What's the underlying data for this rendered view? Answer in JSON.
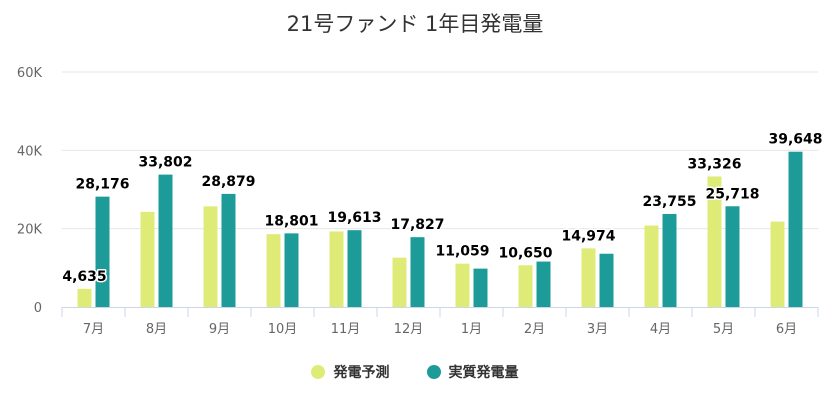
{
  "chart_data": {
    "type": "bar",
    "title": "21号ファンド 1年目発電量",
    "xlabel": "",
    "ylabel": "",
    "ylim": [
      0,
      60000
    ],
    "y_ticks": [
      0,
      20000,
      40000,
      60000
    ],
    "y_tick_labels": [
      "0",
      "20K",
      "40K",
      "60K"
    ],
    "grid": true,
    "legend_position": "bottom",
    "categories": [
      "7月",
      "8月",
      "9月",
      "10月",
      "11月",
      "12月",
      "1月",
      "2月",
      "3月",
      "4月",
      "5月",
      "6月"
    ],
    "series": [
      {
        "name": "発電予測",
        "color": "#dfeb77",
        "values": [
          4635,
          24300,
          25700,
          18600,
          19300,
          12600,
          11059,
          10650,
          14974,
          20800,
          33326,
          21800
        ],
        "labels": [
          "4,635",
          "",
          "",
          "",
          "",
          "",
          "11,059",
          "10,650",
          "14,974",
          "",
          "33,326",
          ""
        ]
      },
      {
        "name": "実質発電量",
        "color": "#1c9b99",
        "values": [
          28176,
          33802,
          28879,
          18801,
          19613,
          17827,
          9800,
          11600,
          13600,
          23755,
          25718,
          39648
        ],
        "labels": [
          "28,176",
          "33,802",
          "28,879",
          "18,801",
          "19,613",
          "17,827",
          "",
          "",
          "",
          "23,755",
          "25,718",
          "39,648"
        ]
      }
    ]
  }
}
